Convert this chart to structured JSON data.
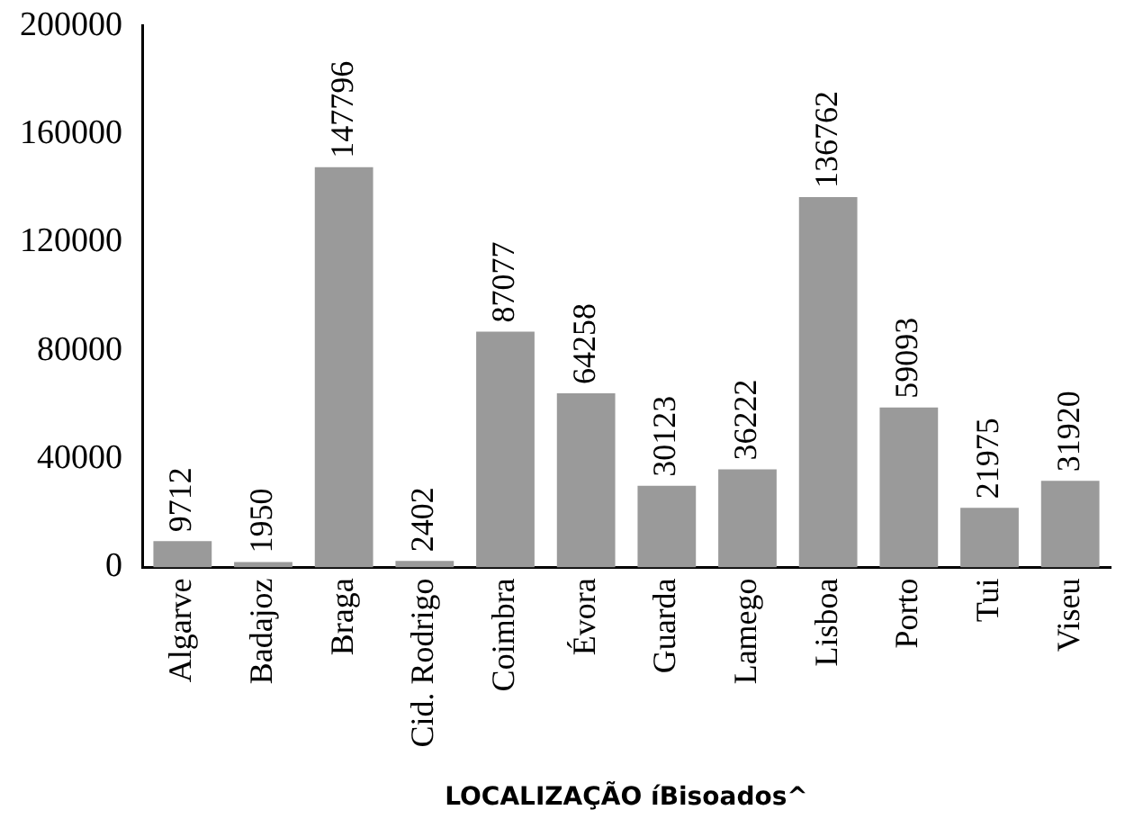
{
  "chart_data": {
    "type": "bar",
    "xlabel": "LOCALIZAÇÃO íBisoados^",
    "categories": [
      "Algarve",
      "Badajoz",
      "Braga",
      "Cid. Rodrigo",
      "Coimbra",
      "Évora",
      "Guarda",
      "Lamego",
      "Lisboa",
      "Porto",
      "Tui",
      "Viseu"
    ],
    "values": [
      9712,
      1950,
      147796,
      2402,
      87077,
      64258,
      30123,
      36222,
      136762,
      59093,
      21975,
      31920
    ],
    "color": "#9a9a9a",
    "ylim": [
      0,
      200000
    ],
    "yticks": [
      0,
      40000,
      80000,
      120000,
      160000,
      200000
    ],
    "data_labels": true,
    "grid": false,
    "legend": false
  }
}
